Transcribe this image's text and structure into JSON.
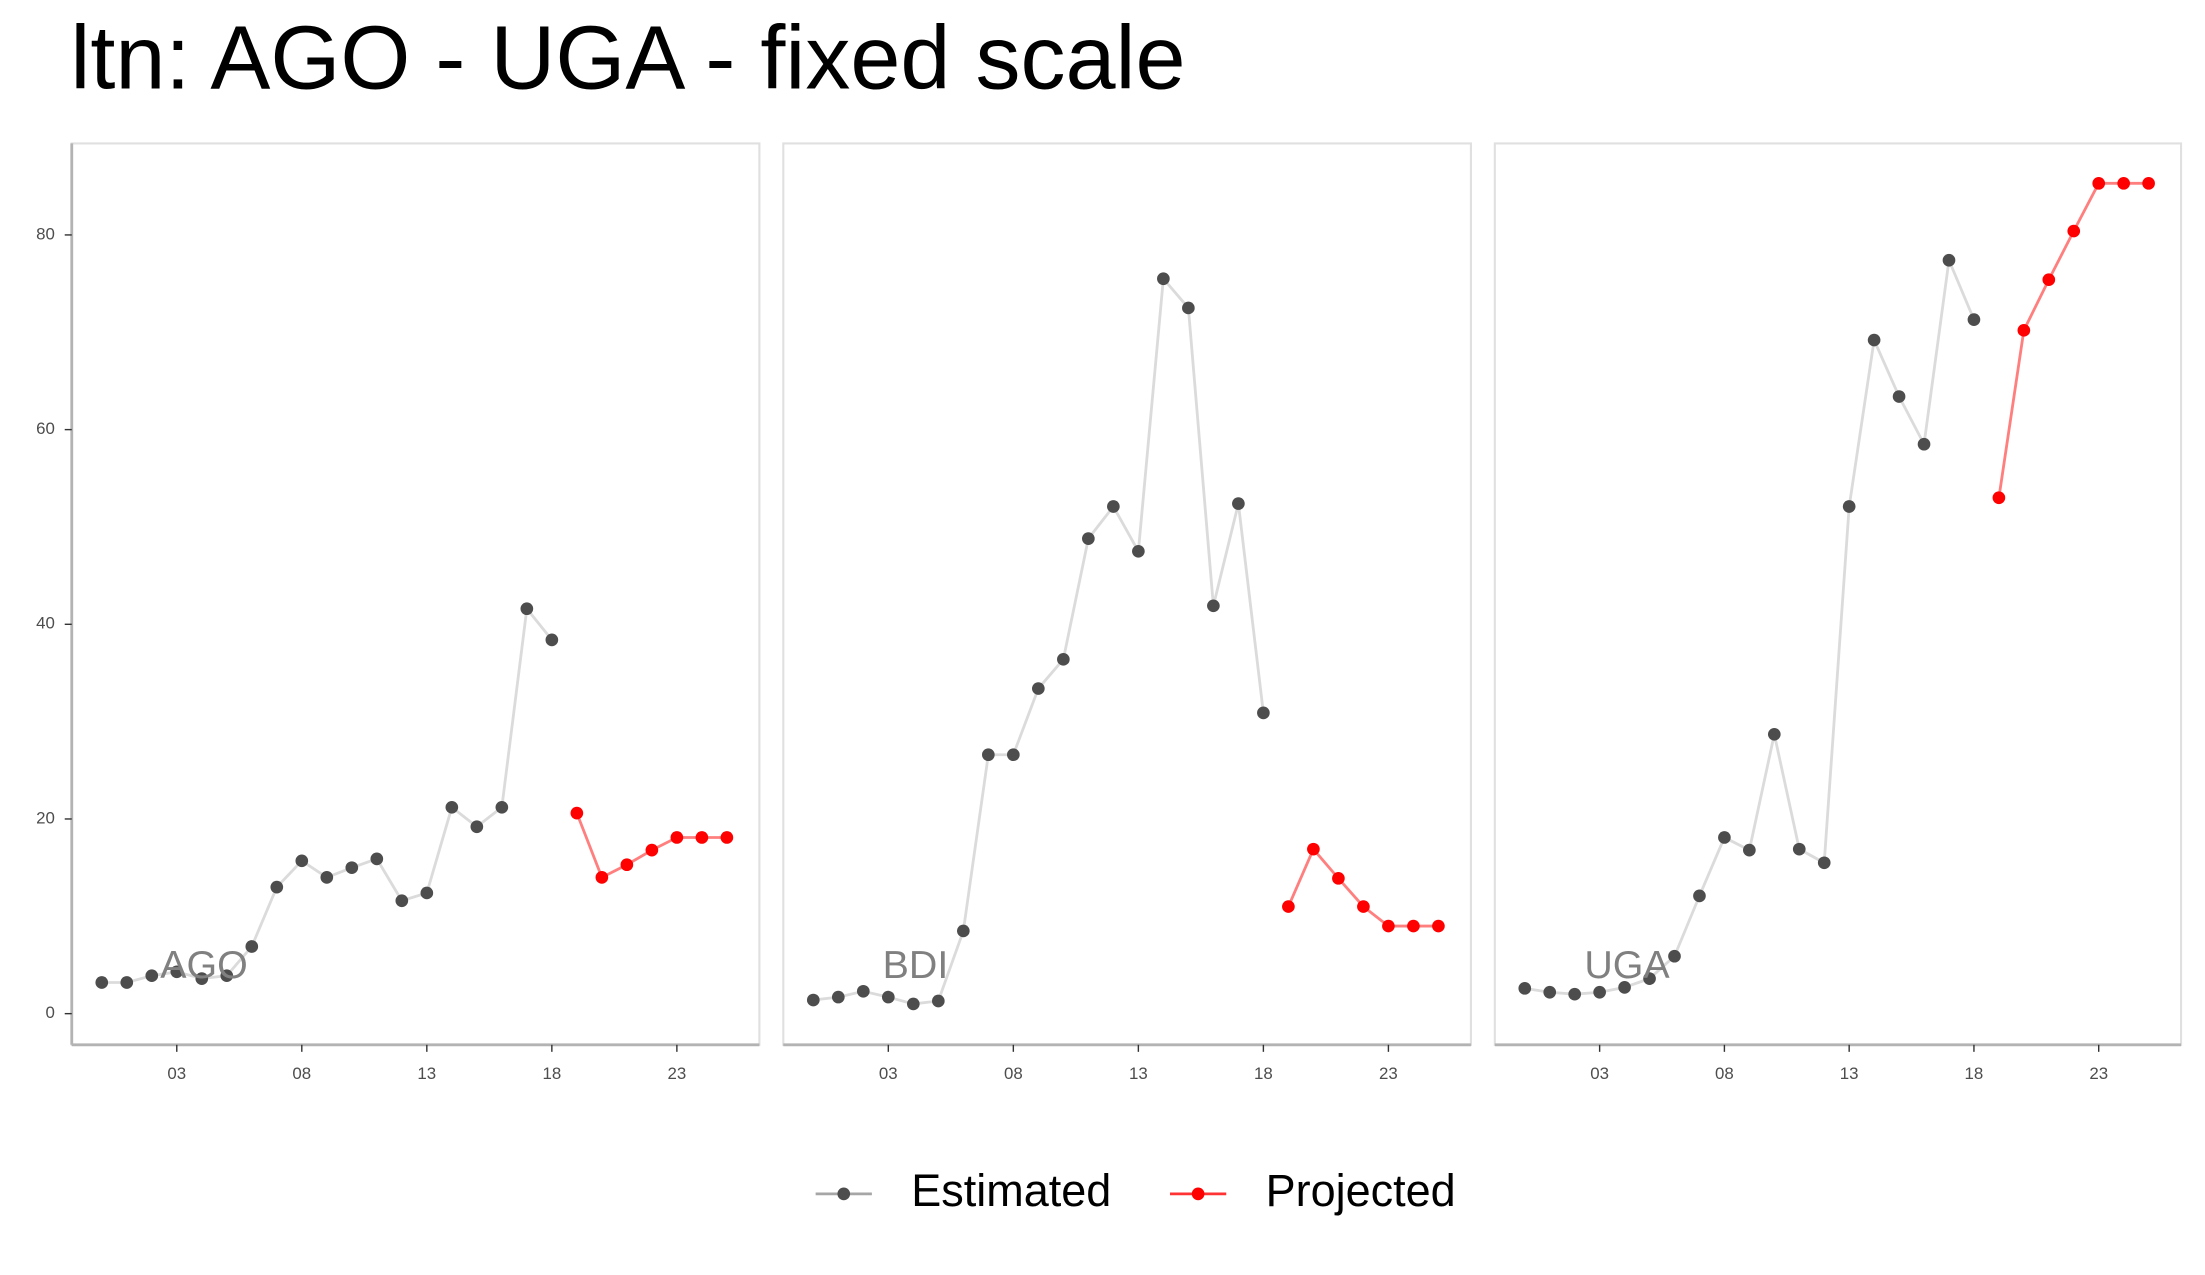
{
  "title": "ltn: AGO - UGA - fixed scale",
  "chart_data": [
    {
      "type": "line",
      "label": "AGO",
      "x": [
        0,
        1,
        2,
        3,
        4,
        5,
        6,
        7,
        8,
        9,
        10,
        11,
        12,
        13,
        14,
        15,
        16,
        17,
        18,
        19,
        20,
        21,
        22,
        23,
        24,
        25
      ],
      "series": [
        {
          "name": "Estimated",
          "color": "#4d4d4d",
          "values": [
            3.2,
            3.2,
            3.9,
            4.3,
            3.6,
            3.9,
            6.9,
            13.0,
            15.7,
            14.0,
            15.0,
            15.9,
            11.6,
            12.4,
            21.2,
            19.2,
            21.2,
            41.6,
            38.4,
            null,
            null,
            null,
            null,
            null,
            null,
            null
          ]
        },
        {
          "name": "Projected",
          "color": "#ff0000",
          "values": [
            null,
            null,
            null,
            null,
            null,
            null,
            null,
            null,
            null,
            null,
            null,
            null,
            null,
            null,
            null,
            null,
            null,
            null,
            null,
            20.6,
            14.0,
            15.3,
            16.8,
            18.1,
            18.1,
            18.1
          ]
        }
      ],
      "xlim": [
        -1.2,
        26.3
      ],
      "ylim": [
        -3.2,
        89.4
      ],
      "xticks": [
        {
          "value": 3,
          "label": "03"
        },
        {
          "value": 8,
          "label": "08"
        },
        {
          "value": 13,
          "label": "13"
        },
        {
          "value": 18,
          "label": "18"
        },
        {
          "value": 23,
          "label": "23"
        }
      ],
      "yticks": [
        0,
        20,
        40,
        60,
        80
      ]
    },
    {
      "type": "line",
      "label": "BDI",
      "x": [
        0,
        1,
        2,
        3,
        4,
        5,
        6,
        7,
        8,
        9,
        10,
        11,
        12,
        13,
        14,
        15,
        16,
        17,
        18,
        19,
        20,
        21,
        22,
        23,
        24,
        25
      ],
      "series": [
        {
          "name": "Estimated",
          "color": "#4d4d4d",
          "values": [
            1.4,
            1.7,
            2.3,
            1.7,
            1.0,
            1.3,
            8.5,
            26.6,
            26.6,
            33.4,
            36.4,
            48.8,
            52.1,
            47.5,
            75.5,
            72.5,
            41.9,
            52.4,
            30.9,
            null,
            null,
            null,
            null,
            null,
            null,
            null
          ]
        },
        {
          "name": "Projected",
          "color": "#ff0000",
          "values": [
            null,
            null,
            null,
            null,
            null,
            null,
            null,
            null,
            null,
            null,
            null,
            null,
            null,
            null,
            null,
            null,
            null,
            null,
            null,
            11.0,
            16.9,
            13.9,
            11.0,
            9.0,
            9.0,
            9.0
          ]
        }
      ],
      "xlim": [
        -1.2,
        26.3
      ],
      "ylim": [
        -3.2,
        89.4
      ],
      "xticks": [
        {
          "value": 3,
          "label": "03"
        },
        {
          "value": 8,
          "label": "08"
        },
        {
          "value": 13,
          "label": "13"
        },
        {
          "value": 18,
          "label": "18"
        },
        {
          "value": 23,
          "label": "23"
        }
      ]
    },
    {
      "type": "line",
      "label": "UGA",
      "x": [
        0,
        1,
        2,
        3,
        4,
        5,
        6,
        7,
        8,
        9,
        10,
        11,
        12,
        13,
        14,
        15,
        16,
        17,
        18,
        19,
        20,
        21,
        22,
        23,
        24,
        25
      ],
      "series": [
        {
          "name": "Estimated",
          "color": "#4d4d4d",
          "values": [
            2.6,
            2.2,
            2.0,
            2.2,
            2.7,
            3.6,
            5.9,
            12.1,
            18.1,
            16.8,
            28.7,
            16.9,
            15.5,
            52.1,
            69.2,
            63.4,
            58.5,
            77.4,
            71.3,
            null,
            null,
            null,
            null,
            null,
            null,
            null
          ]
        },
        {
          "name": "Projected",
          "color": "#ff0000",
          "values": [
            null,
            null,
            null,
            null,
            null,
            null,
            null,
            null,
            null,
            null,
            null,
            null,
            null,
            null,
            null,
            null,
            null,
            null,
            null,
            53.0,
            70.2,
            75.4,
            80.4,
            85.3,
            85.3,
            85.3
          ]
        }
      ],
      "xlim": [
        -1.2,
        26.3
      ],
      "ylim": [
        -3.2,
        89.4
      ],
      "xticks": [
        {
          "value": 3,
          "label": "03"
        },
        {
          "value": 8,
          "label": "08"
        },
        {
          "value": 13,
          "label": "13"
        },
        {
          "value": 18,
          "label": "18"
        },
        {
          "value": 23,
          "label": "23"
        }
      ]
    }
  ]
}
